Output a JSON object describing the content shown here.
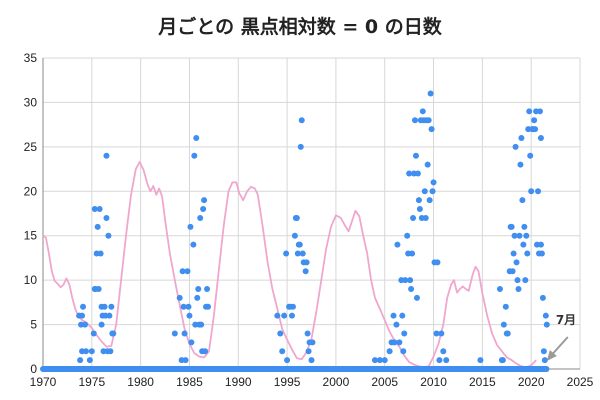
{
  "chart_data": {
    "type": "scatter",
    "title": "月ごとの  黒点相対数 = 0  の日数",
    "xlim": [
      1970,
      2025
    ],
    "ylim": [
      0,
      35
    ],
    "x_ticks": [
      1970,
      1975,
      1980,
      1985,
      1990,
      1995,
      2000,
      2005,
      2010,
      2015,
      2020,
      2025
    ],
    "y_ticks": [
      0,
      5,
      10,
      15,
      20,
      25,
      30,
      35
    ],
    "grid": true,
    "annotation": {
      "text": "7月",
      "x": 2021.5,
      "y": 0
    },
    "colors": {
      "points": "#3f8ef0",
      "curve": "#f0a6cf",
      "grid": "#d7d7d7",
      "annotation": "#9a9a9a"
    },
    "series": [
      {
        "kind": "points",
        "points": [
          [
            1973.6,
            0
          ],
          [
            1973.8,
            1
          ],
          [
            1974.0,
            2
          ],
          [
            1973.9,
            5
          ],
          [
            1973.7,
            6
          ],
          [
            1974.0,
            6
          ],
          [
            1974.1,
            7
          ],
          [
            1974.3,
            5
          ],
          [
            1974.4,
            2
          ],
          [
            1974.5,
            0
          ],
          [
            1974.8,
            1
          ],
          [
            1975.0,
            2
          ],
          [
            1975.2,
            4
          ],
          [
            1975.3,
            9
          ],
          [
            1975.3,
            18
          ],
          [
            1975.4,
            9
          ],
          [
            1975.5,
            13
          ],
          [
            1975.6,
            16
          ],
          [
            1975.7,
            9
          ],
          [
            1975.8,
            18
          ],
          [
            1975.9,
            13
          ],
          [
            1976.0,
            7
          ],
          [
            1976.0,
            5
          ],
          [
            1976.1,
            6
          ],
          [
            1976.2,
            2
          ],
          [
            1976.3,
            7
          ],
          [
            1976.4,
            6
          ],
          [
            1976.5,
            24
          ],
          [
            1976.5,
            17
          ],
          [
            1976.6,
            2
          ],
          [
            1976.7,
            15
          ],
          [
            1976.8,
            6
          ],
          [
            1976.9,
            2
          ],
          [
            1977.0,
            7
          ],
          [
            1977.1,
            4
          ],
          [
            1977.2,
            4
          ],
          [
            1983.5,
            4
          ],
          [
            1984.0,
            8
          ],
          [
            1984.2,
            1
          ],
          [
            1984.3,
            11
          ],
          [
            1984.4,
            7
          ],
          [
            1984.5,
            4
          ],
          [
            1984.6,
            1
          ],
          [
            1984.8,
            11
          ],
          [
            1984.9,
            7
          ],
          [
            1985.0,
            6
          ],
          [
            1985.1,
            16
          ],
          [
            1985.2,
            3
          ],
          [
            1985.4,
            14
          ],
          [
            1985.5,
            24
          ],
          [
            1985.6,
            5
          ],
          [
            1985.7,
            26
          ],
          [
            1985.8,
            8
          ],
          [
            1985.9,
            9
          ],
          [
            1986.0,
            5
          ],
          [
            1986.1,
            17
          ],
          [
            1986.2,
            5
          ],
          [
            1986.3,
            2
          ],
          [
            1986.4,
            18
          ],
          [
            1986.5,
            19
          ],
          [
            1986.6,
            2
          ],
          [
            1986.7,
            7
          ],
          [
            1986.8,
            9
          ],
          [
            1986.9,
            7
          ],
          [
            1994.0,
            6
          ],
          [
            1994.3,
            4
          ],
          [
            1994.5,
            2
          ],
          [
            1994.7,
            6
          ],
          [
            1994.9,
            13
          ],
          [
            1995.0,
            1
          ],
          [
            1995.2,
            7
          ],
          [
            1995.3,
            7
          ],
          [
            1995.5,
            6
          ],
          [
            1995.6,
            7
          ],
          [
            1995.8,
            15
          ],
          [
            1995.9,
            17
          ],
          [
            1996.0,
            17
          ],
          [
            1996.1,
            13
          ],
          [
            1996.2,
            14
          ],
          [
            1996.3,
            14
          ],
          [
            1996.4,
            25
          ],
          [
            1996.5,
            28
          ],
          [
            1996.6,
            13
          ],
          [
            1996.7,
            12
          ],
          [
            1996.9,
            11
          ],
          [
            1997.0,
            12
          ],
          [
            1997.1,
            4
          ],
          [
            1997.2,
            2
          ],
          [
            1997.3,
            3
          ],
          [
            1997.5,
            1
          ],
          [
            1997.6,
            3
          ],
          [
            2004.0,
            1
          ],
          [
            2004.5,
            1
          ],
          [
            2005.0,
            1
          ],
          [
            2005.5,
            2
          ],
          [
            2005.7,
            3
          ],
          [
            2005.9,
            6
          ],
          [
            2006.0,
            3
          ],
          [
            2006.2,
            5
          ],
          [
            2006.3,
            14
          ],
          [
            2006.5,
            3
          ],
          [
            2006.7,
            10
          ],
          [
            2006.8,
            6
          ],
          [
            2006.9,
            2
          ],
          [
            2007.0,
            4
          ],
          [
            2007.1,
            10
          ],
          [
            2007.3,
            15
          ],
          [
            2007.4,
            13
          ],
          [
            2007.5,
            22
          ],
          [
            2007.6,
            10
          ],
          [
            2007.7,
            9
          ],
          [
            2007.8,
            13
          ],
          [
            2007.9,
            17
          ],
          [
            2008.0,
            22
          ],
          [
            2008.1,
            28
          ],
          [
            2008.2,
            24
          ],
          [
            2008.3,
            8
          ],
          [
            2008.4,
            22
          ],
          [
            2008.5,
            19
          ],
          [
            2008.6,
            18
          ],
          [
            2008.7,
            28
          ],
          [
            2008.8,
            17
          ],
          [
            2008.9,
            29
          ],
          [
            2009.0,
            28
          ],
          [
            2009.1,
            20
          ],
          [
            2009.2,
            17
          ],
          [
            2009.3,
            28
          ],
          [
            2009.4,
            23
          ],
          [
            2009.5,
            28
          ],
          [
            2009.6,
            19
          ],
          [
            2009.7,
            31
          ],
          [
            2009.8,
            27
          ],
          [
            2009.9,
            20
          ],
          [
            2010.0,
            21
          ],
          [
            2010.1,
            12
          ],
          [
            2010.3,
            4
          ],
          [
            2010.4,
            12
          ],
          [
            2010.6,
            1
          ],
          [
            2010.8,
            4
          ],
          [
            2011.0,
            2
          ],
          [
            2011.3,
            1
          ],
          [
            2014.8,
            1
          ],
          [
            2016.8,
            9
          ],
          [
            2017.0,
            1
          ],
          [
            2017.1,
            1
          ],
          [
            2017.2,
            5
          ],
          [
            2017.4,
            7
          ],
          [
            2017.5,
            4
          ],
          [
            2017.6,
            4
          ],
          [
            2017.8,
            11
          ],
          [
            2017.9,
            16
          ],
          [
            2018.0,
            16
          ],
          [
            2018.1,
            11
          ],
          [
            2018.2,
            13
          ],
          [
            2018.3,
            15
          ],
          [
            2018.4,
            25
          ],
          [
            2018.5,
            12
          ],
          [
            2018.6,
            10
          ],
          [
            2018.7,
            9
          ],
          [
            2018.8,
            15
          ],
          [
            2018.9,
            23
          ],
          [
            2019.0,
            26
          ],
          [
            2019.1,
            19
          ],
          [
            2019.2,
            14
          ],
          [
            2019.3,
            16
          ],
          [
            2019.4,
            10
          ],
          [
            2019.5,
            15
          ],
          [
            2019.6,
            13
          ],
          [
            2019.7,
            27
          ],
          [
            2019.8,
            29
          ],
          [
            2019.9,
            24
          ],
          [
            2020.0,
            20
          ],
          [
            2020.1,
            27
          ],
          [
            2020.2,
            27
          ],
          [
            2020.3,
            28
          ],
          [
            2020.4,
            27
          ],
          [
            2020.5,
            29
          ],
          [
            2020.6,
            14
          ],
          [
            2020.7,
            20
          ],
          [
            2020.8,
            13
          ],
          [
            2020.9,
            29
          ],
          [
            2021.0,
            26
          ],
          [
            2021.0,
            14
          ],
          [
            2021.1,
            13
          ],
          [
            2021.2,
            8
          ],
          [
            2021.3,
            2
          ],
          [
            2021.4,
            1
          ],
          [
            2021.5,
            6
          ],
          [
            2021.6,
            5
          ]
        ]
      },
      {
        "kind": "line",
        "points": [
          [
            1970.0,
            15
          ],
          [
            1970.3,
            14.8
          ],
          [
            1970.6,
            13
          ],
          [
            1970.9,
            11
          ],
          [
            1971.2,
            9.9
          ],
          [
            1971.5,
            9.6
          ],
          [
            1971.8,
            9.2
          ],
          [
            1972.1,
            9.5
          ],
          [
            1972.4,
            10.2
          ],
          [
            1972.7,
            9.5
          ],
          [
            1973.0,
            8
          ],
          [
            1973.3,
            6.8
          ],
          [
            1973.6,
            6
          ],
          [
            1974.0,
            5.5
          ],
          [
            1974.5,
            5.2
          ],
          [
            1975.0,
            4.6
          ],
          [
            1975.5,
            3.8
          ],
          [
            1976.0,
            3.1
          ],
          [
            1976.5,
            2.5
          ],
          [
            1977.0,
            2.6
          ],
          [
            1977.5,
            5
          ],
          [
            1978.0,
            10
          ],
          [
            1978.5,
            15
          ],
          [
            1979.0,
            19.5
          ],
          [
            1979.5,
            22.5
          ],
          [
            1979.9,
            23.3
          ],
          [
            1980.3,
            22.4
          ],
          [
            1980.7,
            20.8
          ],
          [
            1981.0,
            20
          ],
          [
            1981.3,
            20.6
          ],
          [
            1981.6,
            19.6
          ],
          [
            1981.9,
            20.3
          ],
          [
            1982.2,
            19.4
          ],
          [
            1982.6,
            16
          ],
          [
            1983.0,
            13
          ],
          [
            1983.5,
            10
          ],
          [
            1984.0,
            7.2
          ],
          [
            1984.5,
            4.5
          ],
          [
            1985.0,
            2.8
          ],
          [
            1985.5,
            1.8
          ],
          [
            1986.0,
            1.4
          ],
          [
            1986.5,
            1.3
          ],
          [
            1987.0,
            2
          ],
          [
            1987.5,
            6
          ],
          [
            1988.0,
            11
          ],
          [
            1988.5,
            16
          ],
          [
            1989.0,
            20
          ],
          [
            1989.4,
            21
          ],
          [
            1989.8,
            21
          ],
          [
            1990.1,
            19.8
          ],
          [
            1990.5,
            19
          ],
          [
            1990.9,
            20
          ],
          [
            1991.3,
            20.5
          ],
          [
            1991.7,
            20.3
          ],
          [
            1992.0,
            19.6
          ],
          [
            1992.5,
            16
          ],
          [
            1993.0,
            12
          ],
          [
            1993.5,
            9
          ],
          [
            1994.0,
            6.8
          ],
          [
            1994.5,
            4.5
          ],
          [
            1995.0,
            3.3
          ],
          [
            1995.5,
            2.2
          ],
          [
            1996.0,
            1.2
          ],
          [
            1996.5,
            1.1
          ],
          [
            1997.0,
            1.9
          ],
          [
            1997.5,
            3.4
          ],
          [
            1998.0,
            6.5
          ],
          [
            1998.5,
            10
          ],
          [
            1999.0,
            13.5
          ],
          [
            1999.5,
            16
          ],
          [
            2000.0,
            17.3
          ],
          [
            2000.5,
            17
          ],
          [
            2001.0,
            16
          ],
          [
            2001.3,
            15.5
          ],
          [
            2001.7,
            16.8
          ],
          [
            2002.0,
            17.8
          ],
          [
            2002.4,
            17.2
          ],
          [
            2002.8,
            15
          ],
          [
            2003.2,
            13
          ],
          [
            2003.6,
            10
          ],
          [
            2004.0,
            8
          ],
          [
            2004.5,
            6.8
          ],
          [
            2005.0,
            5.5
          ],
          [
            2005.5,
            4.2
          ],
          [
            2006.0,
            3.2
          ],
          [
            2006.5,
            2.5
          ],
          [
            2007.0,
            1.5
          ],
          [
            2007.5,
            0.8
          ],
          [
            2008.0,
            0.5
          ],
          [
            2008.5,
            0.3
          ],
          [
            2009.0,
            0.2
          ],
          [
            2009.5,
            0.3
          ],
          [
            2010.0,
            1.4
          ],
          [
            2010.5,
            2.8
          ],
          [
            2011.0,
            5
          ],
          [
            2011.4,
            8
          ],
          [
            2011.8,
            9.5
          ],
          [
            2012.1,
            10
          ],
          [
            2012.4,
            8.6
          ],
          [
            2012.7,
            9
          ],
          [
            2013.0,
            9.3
          ],
          [
            2013.3,
            9
          ],
          [
            2013.6,
            8.8
          ],
          [
            2014.0,
            10.6
          ],
          [
            2014.3,
            11.5
          ],
          [
            2014.6,
            11
          ],
          [
            2015.0,
            8.5
          ],
          [
            2015.5,
            6
          ],
          [
            2016.0,
            4
          ],
          [
            2016.5,
            2.7
          ],
          [
            2017.0,
            2
          ],
          [
            2017.5,
            1.3
          ],
          [
            2018.0,
            1
          ],
          [
            2018.5,
            0.6
          ],
          [
            2019.0,
            0.3
          ],
          [
            2019.5,
            0.2
          ],
          [
            2020.0,
            0.4
          ],
          [
            2020.5,
            1
          ]
        ]
      }
    ]
  }
}
